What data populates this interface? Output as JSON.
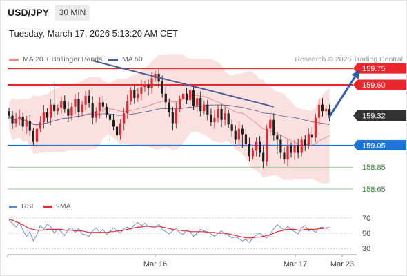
{
  "header": {
    "symbol": "USD/JPY",
    "timeframe": "30 MIN",
    "timestamp": "Tuesday, March 17, 2026 5:13:20 AM CET"
  },
  "legend": {
    "ma20": "MA 20 + Bollinger Bands",
    "ma50": "MA 50",
    "credit": "Research © 2026 Trading Central"
  },
  "rsi_legend": {
    "rsi": "RSI",
    "ma9": "9MA"
  },
  "colors": {
    "bull": "#e8262b",
    "bear": "#1f1f1f",
    "ma20": "#f08a8a",
    "ma50": "#4a5d93",
    "band": "#fbe0e0",
    "resistance": "#e8262b",
    "support": "#1e73d9",
    "minor_support": "#8fce8f",
    "arrow": "#2f5caa",
    "rsi": "#5b87d9",
    "rsi_ma": "#e8262b"
  },
  "chart_data": [
    {
      "type": "candlestick",
      "xlabel": "",
      "ylabel": "",
      "ylim": [
        158.6,
        159.82
      ],
      "x_tick_labels": [
        "Mar 16",
        "Mar 17",
        "Mar 23"
      ],
      "levels": [
        {
          "value": 159.75,
          "label": "159.75",
          "kind": "resistance"
        },
        {
          "value": 159.6,
          "label": "159.60",
          "kind": "resistance"
        },
        {
          "value": 159.32,
          "label": "159.32",
          "kind": "current"
        },
        {
          "value": 159.05,
          "label": "159.05",
          "kind": "support"
        },
        {
          "value": 158.85,
          "label": "158.85",
          "kind": "minor_support"
        },
        {
          "value": 158.65,
          "label": "158.65",
          "kind": "minor_support"
        }
      ],
      "close": [
        159.32,
        159.25,
        159.29,
        159.31,
        159.22,
        159.27,
        159.18,
        159.08,
        159.2,
        159.26,
        159.35,
        159.3,
        159.42,
        159.36,
        159.39,
        159.45,
        159.38,
        159.32,
        159.4,
        159.47,
        159.35,
        159.42,
        159.5,
        159.43,
        159.3,
        159.36,
        159.44,
        159.4,
        159.33,
        159.28,
        159.22,
        159.14,
        159.25,
        159.34,
        159.45,
        159.55,
        159.48,
        159.52,
        159.58,
        159.6,
        159.57,
        159.66,
        159.7,
        159.63,
        159.52,
        159.44,
        159.35,
        159.25,
        159.38,
        159.47,
        159.52,
        159.46,
        159.55,
        159.41,
        159.48,
        159.36,
        159.42,
        159.33,
        159.26,
        159.3,
        159.38,
        159.28,
        159.34,
        159.24,
        159.18,
        159.1,
        159.2,
        159.15,
        159.06,
        158.95,
        159.0,
        159.08,
        158.98,
        158.9,
        159.2,
        159.28,
        159.14,
        159.1,
        158.98,
        158.92,
        159.04,
        158.98,
        159.05,
        158.98,
        159.1,
        159.05,
        159.15,
        159.12,
        159.3,
        159.42,
        159.36,
        159.38,
        159.32
      ],
      "trendline": [
        [
          24,
          159.82
        ],
        [
          76,
          159.4
        ]
      ],
      "forecast_arrow": [
        [
          91,
          159.3
        ],
        [
          97,
          159.74
        ]
      ]
    },
    {
      "type": "line",
      "title": "RSI",
      "ylim": [
        23,
        77
      ],
      "y_ticks": [
        70,
        50,
        30
      ],
      "x_tick_labels": [
        "Mar 16",
        "Mar 17",
        "Mar 23"
      ],
      "series": [
        {
          "name": "RSI",
          "values": [
            67,
            63,
            58,
            64,
            54,
            46,
            52,
            40,
            48,
            60,
            55,
            62,
            58,
            50,
            55,
            52,
            47,
            55,
            57,
            51,
            56,
            49,
            48,
            46,
            53,
            57,
            51,
            55,
            48,
            52,
            57,
            53,
            50,
            56,
            58,
            55,
            61,
            64,
            60,
            63,
            59,
            58,
            57,
            62,
            55,
            52,
            49,
            53,
            56,
            51,
            48,
            54,
            52,
            46,
            50,
            55,
            53,
            52,
            49,
            46,
            50,
            53,
            49,
            47,
            44,
            45,
            43,
            40,
            42,
            38,
            44,
            48,
            50,
            46,
            44,
            49,
            56,
            61,
            58,
            54,
            59,
            55,
            52,
            49,
            57,
            60,
            53,
            55,
            51,
            57,
            58,
            56,
            57
          ]
        },
        {
          "name": "9MA",
          "values": [
            68,
            67,
            65,
            63,
            61,
            58,
            56,
            55,
            54,
            54,
            54,
            55,
            55,
            55,
            55,
            55,
            54,
            54,
            54,
            53,
            53,
            53,
            52,
            51,
            51,
            51,
            51,
            51,
            51,
            52,
            52,
            53,
            53,
            54,
            55,
            56,
            57,
            58,
            58,
            59,
            59,
            59,
            59,
            59,
            58,
            57,
            56,
            55,
            54,
            54,
            53,
            53,
            52,
            52,
            52,
            52,
            52,
            51,
            51,
            51,
            50,
            50,
            50,
            49,
            48,
            47,
            46,
            45,
            44,
            44,
            44,
            45,
            45,
            46,
            47,
            48,
            50,
            52,
            53,
            54,
            55,
            55,
            55,
            54,
            54,
            55,
            55,
            55,
            55,
            56,
            56,
            57,
            57
          ]
        }
      ]
    }
  ]
}
